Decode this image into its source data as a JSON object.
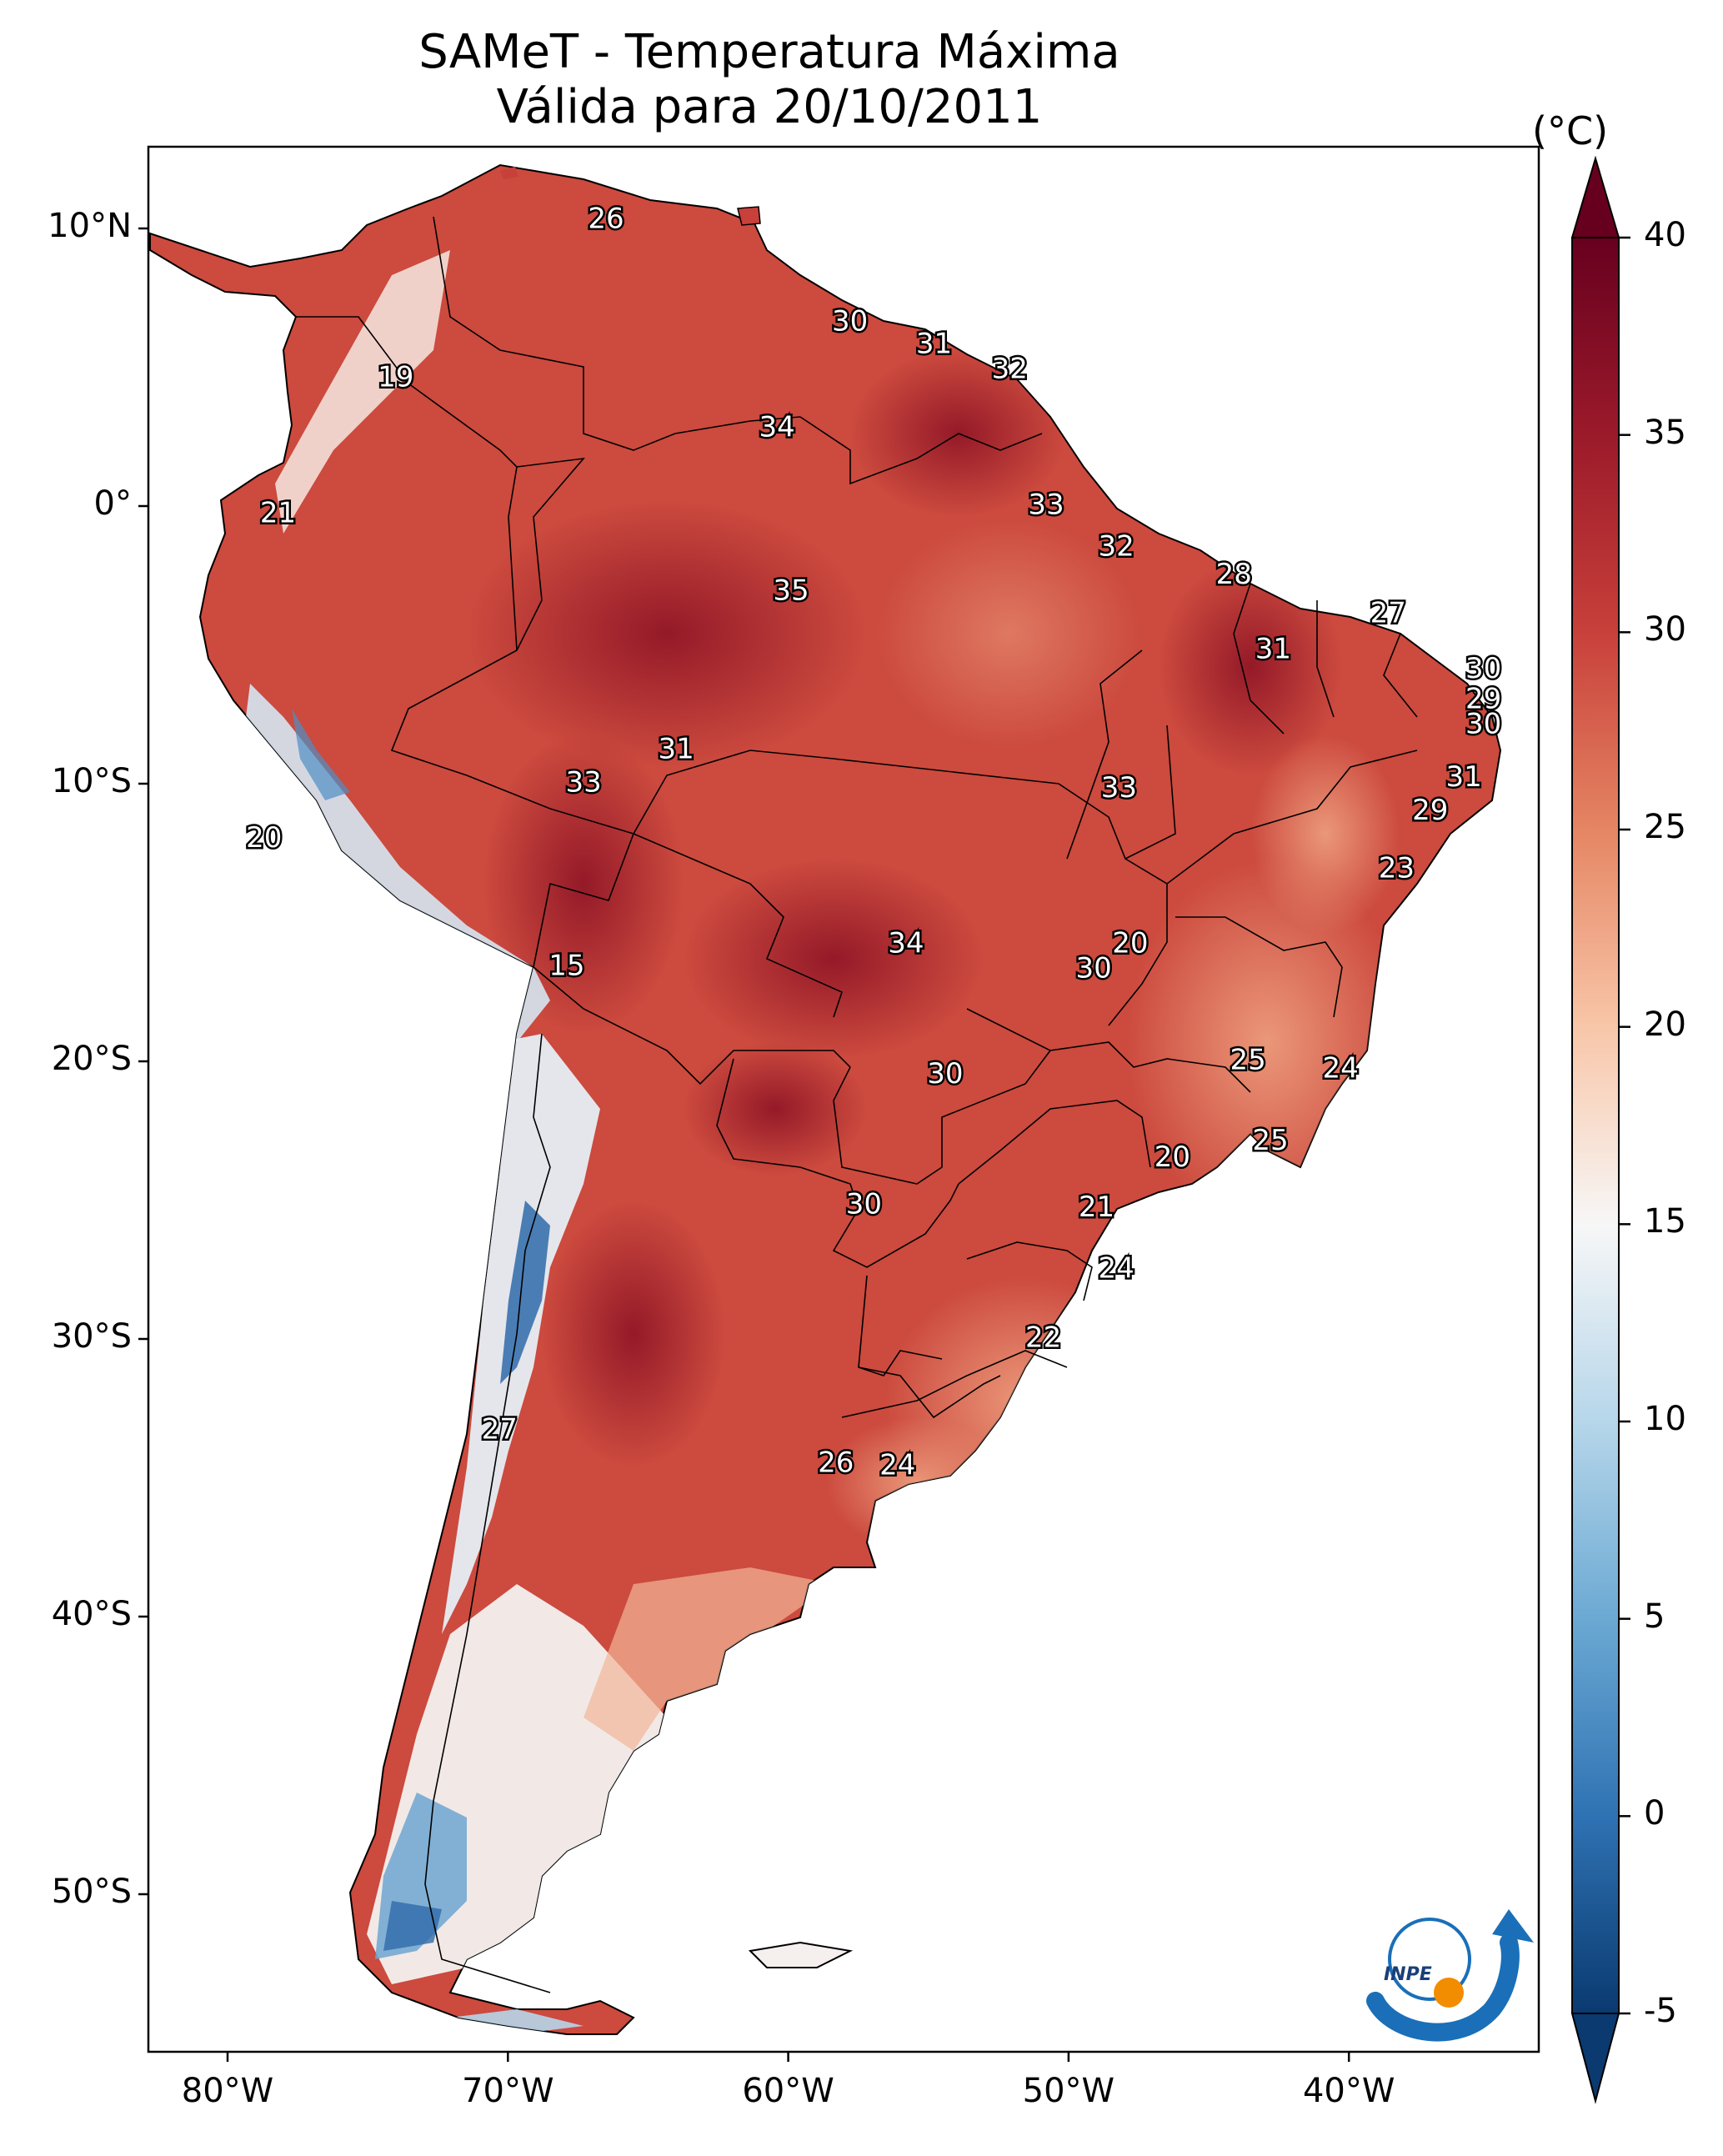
{
  "title": {
    "line1": "SAMeT - Temperatura Máxima",
    "line2": "Válida para 20/10/2011"
  },
  "colorbar": {
    "unit": "(°C)",
    "ticks": [
      "40",
      "35",
      "30",
      "25",
      "20",
      "15",
      "10",
      "5",
      "0",
      "-5"
    ],
    "min": -5,
    "max": 40,
    "colors": [
      "#0a3a70",
      "#2f72b3",
      "#6ba9d3",
      "#b6d6ea",
      "#f7f7f7",
      "#f8c6a8",
      "#e58563",
      "#c8403a",
      "#9b1a2a",
      "#67001f"
    ]
  },
  "axes": {
    "lat_labels": [
      "10°N",
      "0°",
      "10°S",
      "20°S",
      "30°S",
      "40°S",
      "50°S"
    ],
    "lon_labels": [
      "80°W",
      "70°W",
      "60°W",
      "50°W",
      "40°W"
    ]
  },
  "map_labels": [
    {
      "text": "26",
      "lon": -66.5,
      "lat": 10.3
    },
    {
      "text": "19",
      "lon": -74.0,
      "lat": 4.6
    },
    {
      "text": "30",
      "lon": -57.8,
      "lat": 6.6
    },
    {
      "text": "31",
      "lon": -54.8,
      "lat": 5.8
    },
    {
      "text": "32",
      "lon": -52.1,
      "lat": 4.9
    },
    {
      "text": "34",
      "lon": -60.4,
      "lat": 2.8
    },
    {
      "text": "21",
      "lon": -78.2,
      "lat": -0.3
    },
    {
      "text": "33",
      "lon": -50.8,
      "lat": 0.0
    },
    {
      "text": "32",
      "lon": -48.3,
      "lat": -1.5
    },
    {
      "text": "35",
      "lon": -59.9,
      "lat": -3.1
    },
    {
      "text": "28",
      "lon": -44.1,
      "lat": -2.5
    },
    {
      "text": "27",
      "lon": -38.6,
      "lat": -3.9
    },
    {
      "text": "31",
      "lon": -42.7,
      "lat": -5.2
    },
    {
      "text": "30",
      "lon": -35.2,
      "lat": -5.9
    },
    {
      "text": "29",
      "lon": -35.2,
      "lat": -7.0
    },
    {
      "text": "30",
      "lon": -35.2,
      "lat": -7.9
    },
    {
      "text": "31",
      "lon": -64.0,
      "lat": -8.8
    },
    {
      "text": "33",
      "lon": -67.3,
      "lat": -10.0
    },
    {
      "text": "33",
      "lon": -48.2,
      "lat": -10.2
    },
    {
      "text": "31",
      "lon": -35.9,
      "lat": -9.8
    },
    {
      "text": "29",
      "lon": -37.1,
      "lat": -11.0
    },
    {
      "text": "20",
      "lon": -78.7,
      "lat": -12.0
    },
    {
      "text": "23",
      "lon": -38.3,
      "lat": -13.1
    },
    {
      "text": "34",
      "lon": -55.8,
      "lat": -15.8
    },
    {
      "text": "20",
      "lon": -47.8,
      "lat": -15.8
    },
    {
      "text": "30",
      "lon": -49.1,
      "lat": -16.7
    },
    {
      "text": "15",
      "lon": -67.9,
      "lat": -16.6
    },
    {
      "text": "25",
      "lon": -43.6,
      "lat": -20.0
    },
    {
      "text": "24",
      "lon": -40.3,
      "lat": -20.3
    },
    {
      "text": "30",
      "lon": -54.4,
      "lat": -20.5
    },
    {
      "text": "25",
      "lon": -42.8,
      "lat": -22.9
    },
    {
      "text": "20",
      "lon": -46.3,
      "lat": -23.5
    },
    {
      "text": "21",
      "lon": -49.0,
      "lat": -25.3
    },
    {
      "text": "30",
      "lon": -57.3,
      "lat": -25.2
    },
    {
      "text": "24",
      "lon": -48.3,
      "lat": -27.5
    },
    {
      "text": "22",
      "lon": -50.9,
      "lat": -30.0
    },
    {
      "text": "27",
      "lon": -70.3,
      "lat": -33.3
    },
    {
      "text": "26",
      "lon": -58.3,
      "lat": -34.5
    },
    {
      "text": "24",
      "lon": -56.1,
      "lat": -34.6
    }
  ],
  "logo": {
    "text": "INPE"
  }
}
